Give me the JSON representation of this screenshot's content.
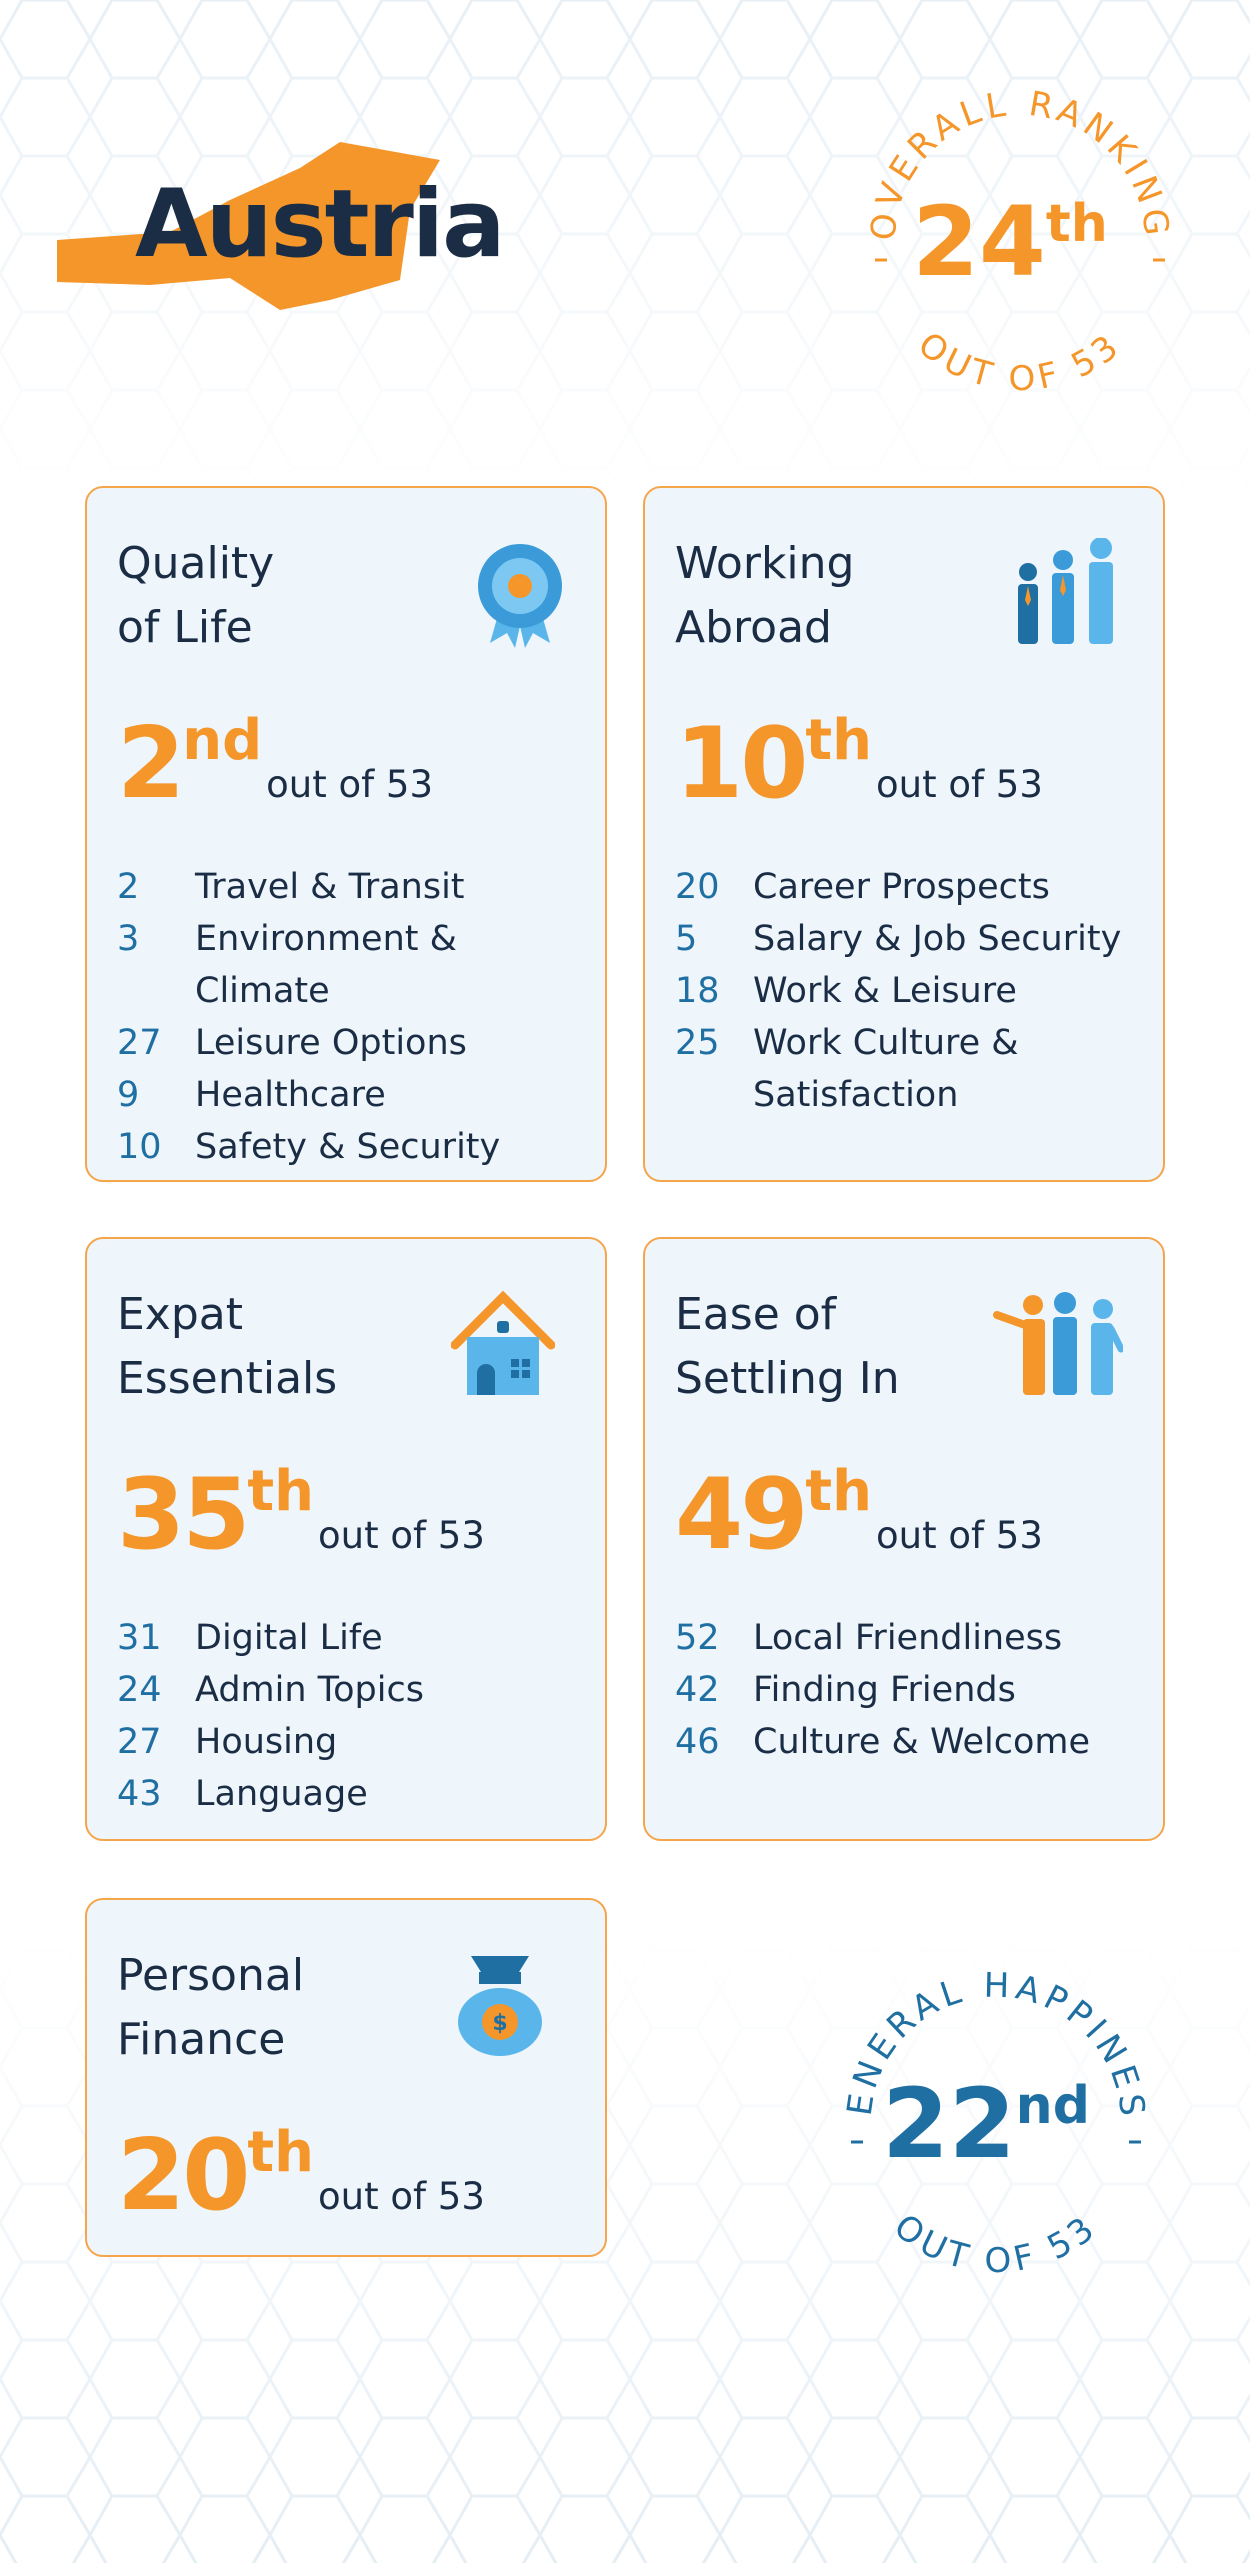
{
  "header": {
    "title": "Austria"
  },
  "overall": {
    "label": "OVERALL RANKING",
    "rank": "24",
    "suffix": "th",
    "out_of": "OUT OF 53"
  },
  "happiness": {
    "label": "GENERAL HAPPINESS",
    "rank": "22",
    "suffix": "nd",
    "out_of": "OUT OF 53"
  },
  "cards": [
    {
      "title_lines": [
        "Quality",
        "of Life"
      ],
      "rank": "2",
      "suffix": "nd",
      "out_of": "out of 53",
      "items": [
        {
          "rank": "2",
          "label": "Travel & Transit"
        },
        {
          "rank": "3",
          "label": "Environment & Climate"
        },
        {
          "rank": "27",
          "label": "Leisure Options"
        },
        {
          "rank": "9",
          "label": "Healthcare"
        },
        {
          "rank": "10",
          "label": "Safety & Security"
        }
      ]
    },
    {
      "title_lines": [
        "Working",
        "Abroad"
      ],
      "rank": "10",
      "suffix": "th",
      "out_of": "out of 53",
      "items": [
        {
          "rank": "20",
          "label": "Career Prospects"
        },
        {
          "rank": "5",
          "label": "Salary & Job Security"
        },
        {
          "rank": "18",
          "label": "Work & Leisure"
        },
        {
          "rank": "25",
          "label": "Work Culture & Satisfaction"
        }
      ]
    },
    {
      "title_lines": [
        "Expat",
        "Essentials"
      ],
      "rank": "35",
      "suffix": "th",
      "out_of": "out of 53",
      "items": [
        {
          "rank": "31",
          "label": "Digital Life"
        },
        {
          "rank": "24",
          "label": "Admin Topics"
        },
        {
          "rank": "27",
          "label": "Housing"
        },
        {
          "rank": "43",
          "label": "Language"
        }
      ]
    },
    {
      "title_lines": [
        "Ease of",
        "Settling In"
      ],
      "rank": "49",
      "suffix": "th",
      "out_of": "out of 53",
      "items": [
        {
          "rank": "52",
          "label": "Local Friendliness"
        },
        {
          "rank": "42",
          "label": "Finding Friends"
        },
        {
          "rank": "46",
          "label": "Culture & Welcome"
        }
      ]
    },
    {
      "title_lines": [
        "Personal",
        "Finance"
      ],
      "rank": "20",
      "suffix": "th",
      "out_of": "out of 53",
      "items": []
    }
  ]
}
